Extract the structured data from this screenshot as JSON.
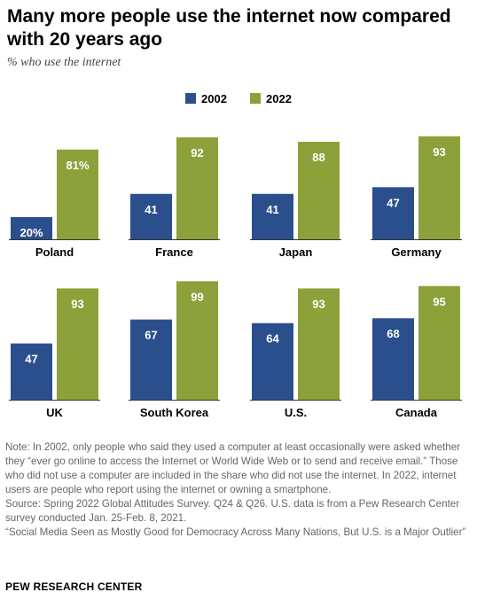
{
  "title": "Many more people use the internet now compared with 20 years ago",
  "subtitle": "% who use the internet",
  "legend": {
    "series_a": "2002",
    "series_b": "2022"
  },
  "colors": {
    "series_a": "#2b4f8c",
    "series_b": "#8da13a",
    "label_text": "#ffffff",
    "country_text": "#000000",
    "baseline": "#333333"
  },
  "chart_data": {
    "type": "bar",
    "categories": [
      "Poland",
      "France",
      "Japan",
      "Germany",
      "UK",
      "South Korea",
      "U.S.",
      "Canada"
    ],
    "series": [
      {
        "name": "2002",
        "values": [
          20,
          41,
          41,
          47,
          47,
          67,
          64,
          68
        ],
        "labels": [
          "20%",
          "41",
          "41",
          "47",
          "47",
          "67",
          "64",
          "68"
        ]
      },
      {
        "name": "2022",
        "values": [
          81,
          92,
          88,
          93,
          93,
          99,
          93,
          95
        ],
        "labels": [
          "81%",
          "92",
          "88",
          "93",
          "93",
          "99",
          "93",
          "95"
        ]
      }
    ],
    "title": "Many more people use the internet now compared with 20 years ago",
    "subtitle": "% who use the internet",
    "ylim": [
      0,
      100
    ],
    "grid": false,
    "legend_position": "top-center"
  },
  "notes": {
    "note": "Note: In 2002, only people who said they used a computer at least occasionally were asked whether they “ever go online to access the Internet or World Wide Web or to send and receive email.” Those who did not use a computer are included in the share who did not use the internet. In 2022, internet users are people who report using the internet or owning a smartphone.",
    "source": "Source: Spring 2022 Global Attitudes Survey. Q24 & Q26. U.S. data is from a Pew Research Center survey conducted Jan. 25-Feb. 8, 2021.",
    "report": "“Social Media Seen as Mostly Good for Democracy Across Many Nations, But U.S. is a Major Outlier”"
  },
  "brand": "PEW RESEARCH CENTER"
}
